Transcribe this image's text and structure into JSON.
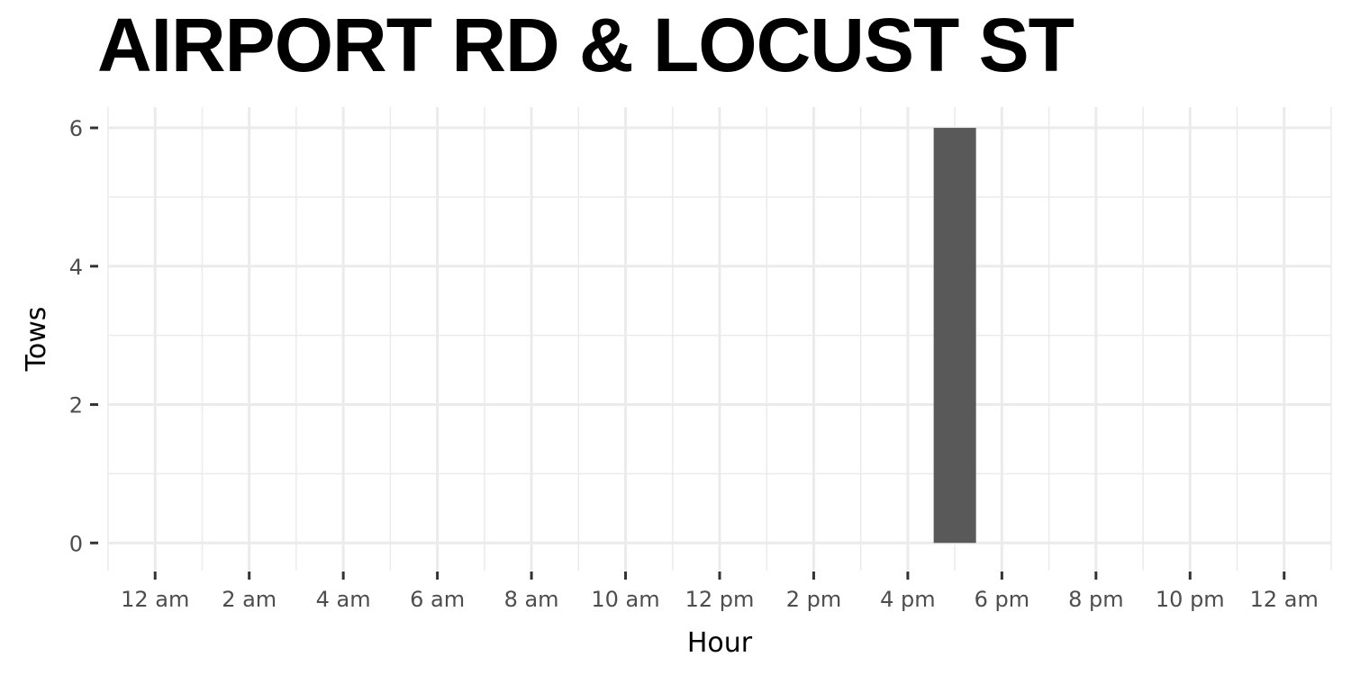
{
  "chart_data": {
    "type": "bar",
    "title": "AIRPORT RD & LOCUST ST",
    "xlabel": "Hour",
    "ylabel": "Tows",
    "x_ticks": [
      "12 am",
      "2 am",
      "4 am",
      "6 am",
      "8 am",
      "10 am",
      "12 pm",
      "2 pm",
      "4 pm",
      "6 pm",
      "8 pm",
      "10 pm",
      "12 am"
    ],
    "x_tick_hours": [
      0,
      2,
      4,
      6,
      8,
      10,
      12,
      14,
      16,
      18,
      20,
      22,
      24
    ],
    "x_range_hours": [
      -1,
      25
    ],
    "y_ticks": [
      "0",
      "2",
      "4",
      "6"
    ],
    "y_tick_values": [
      0,
      2,
      4,
      6
    ],
    "ylim": [
      -0.4,
      6.3
    ],
    "grid": true,
    "bars": [
      {
        "hour": 17,
        "value": 6
      }
    ],
    "colors": {
      "bar": "#595959",
      "grid_major": "#ebebeb",
      "grid_minor": "#ebebeb",
      "tick_mark": "#333333"
    }
  }
}
